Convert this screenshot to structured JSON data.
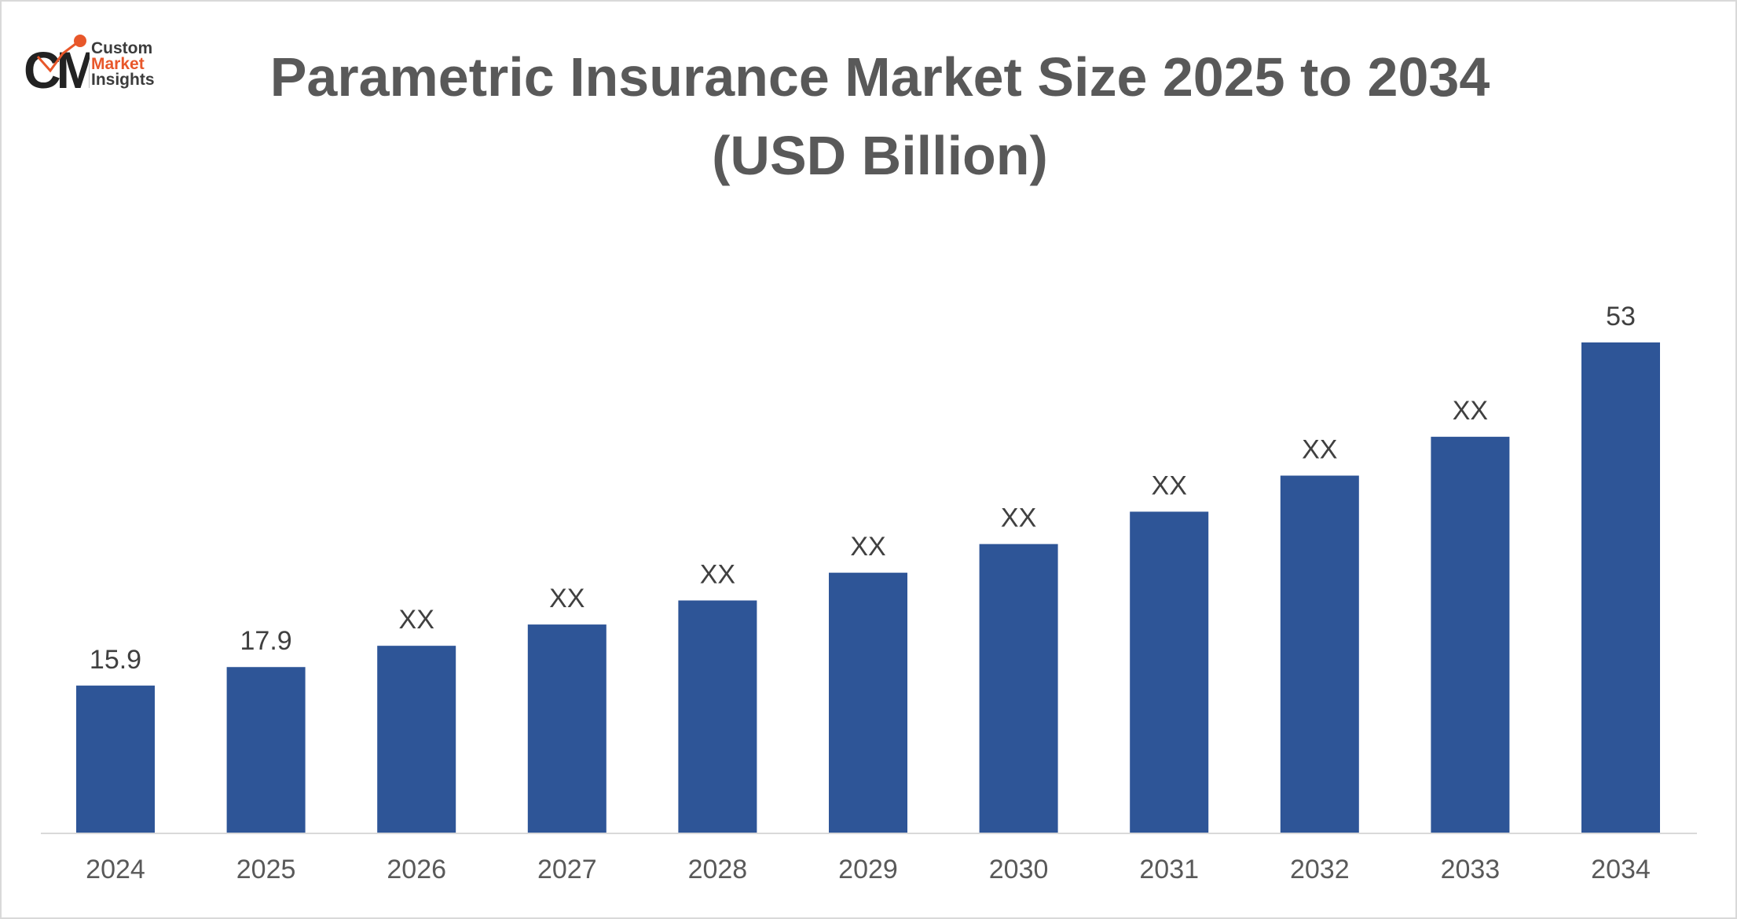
{
  "logo": {
    "mark": "CMI",
    "line1": "Custom",
    "line2": "Market",
    "line3": "Insights"
  },
  "chart_data": {
    "type": "bar",
    "title": "Parametric Insurance Market Size 2025 to 2034",
    "subtitle": "(USD Billion)",
    "xlabel": "",
    "ylabel": "",
    "categories": [
      "2024",
      "2025",
      "2026",
      "2027",
      "2028",
      "2029",
      "2030",
      "2031",
      "2032",
      "2033",
      "2034"
    ],
    "values": [
      15.9,
      17.9,
      20.2,
      22.5,
      25.1,
      28.1,
      31.2,
      34.7,
      38.6,
      42.8,
      53
    ],
    "data_labels": [
      "15.9",
      "17.9",
      "XX",
      "XX",
      "XX",
      "XX",
      "XX",
      "XX",
      "XX",
      "XX",
      "53"
    ],
    "ylim": [
      0,
      62
    ],
    "grid": false,
    "legend": "none",
    "colors": {
      "bar": "#2e5597",
      "axis": "#d9d9d9"
    }
  }
}
